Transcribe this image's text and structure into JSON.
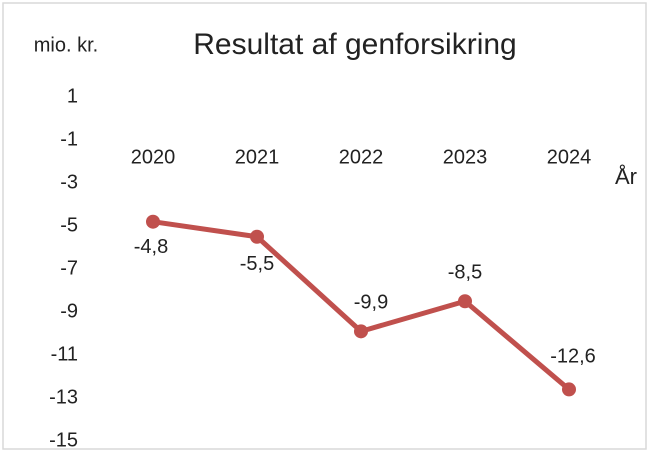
{
  "chart_data": {
    "type": "line",
    "title": "Resultat af genforsikring",
    "y_label": "mio. kr.",
    "x_label": "År",
    "categories": [
      "2020",
      "2021",
      "2022",
      "2023",
      "2024"
    ],
    "series": [
      {
        "name": "Resultat af genforsikring",
        "color": "#c0504d",
        "values": [
          -4.8,
          -5.5,
          -9.9,
          -8.5,
          -12.6
        ],
        "value_labels": [
          "-4,8",
          "-5,5",
          "-9,9",
          "-8,5",
          "-12,6"
        ]
      }
    ],
    "ylim": [
      -15,
      1
    ],
    "yticks": [
      1,
      -1,
      -3,
      -5,
      -7,
      -9,
      -11,
      -13,
      -15
    ],
    "grid": false
  }
}
